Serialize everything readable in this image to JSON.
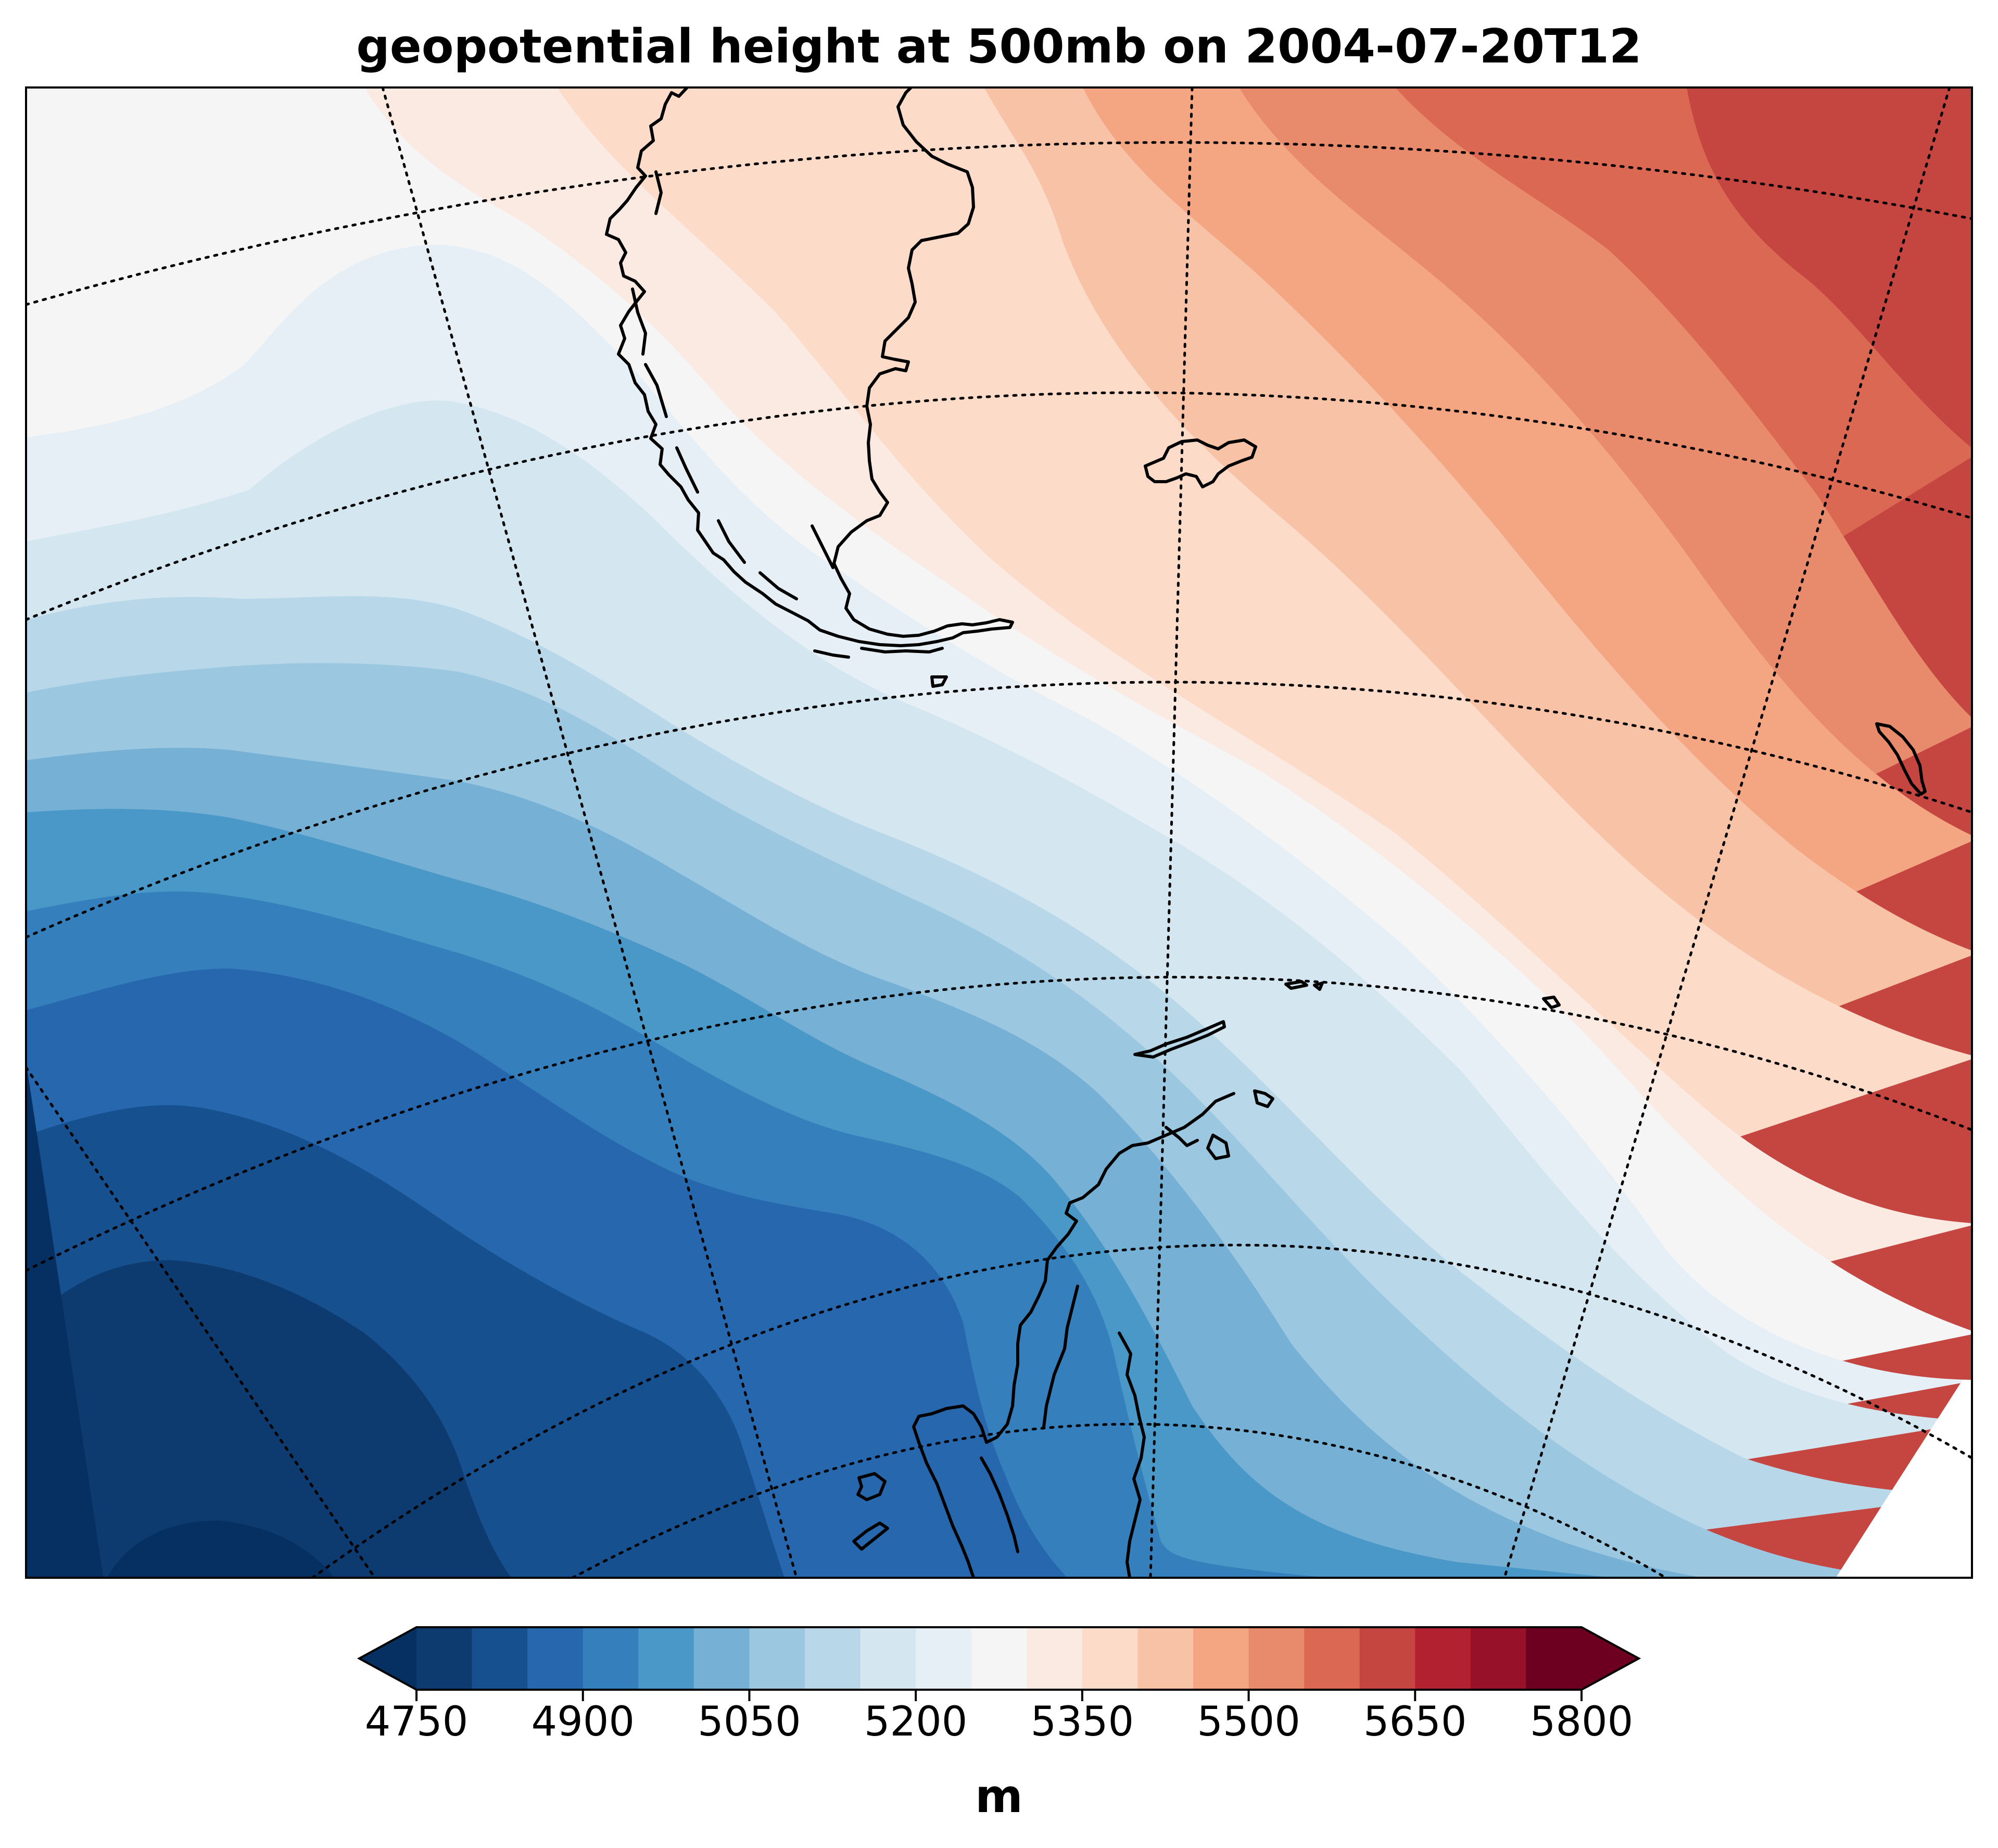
{
  "title": "geopotential height at 500mb on 2004-07-20T12",
  "colorbar": {
    "unit": "m",
    "ticks": [
      "4750",
      "4900",
      "5050",
      "5200",
      "5350",
      "5500",
      "5650",
      "5800"
    ],
    "min": 4750,
    "max": 5800,
    "step": 50,
    "extend": "both",
    "colormap": "RdBu_r",
    "colors": [
      "#053061",
      "#0d3b70",
      "#17508f",
      "#2667ae",
      "#3580bc",
      "#4a98c8",
      "#76b1d5",
      "#9cc7e0",
      "#b8d8e9",
      "#d4e6f0",
      "#e6eff6",
      "#f5f5f5",
      "#faeae2",
      "#fcdbc9",
      "#f8c2a6",
      "#f4a683",
      "#e88a6c",
      "#da6853",
      "#c54641",
      "#b2212f",
      "#971228",
      "#6d0021"
    ]
  },
  "map": {
    "field": "geopotential height",
    "level": "500mb",
    "valid_time": "2004-07-20T12",
    "region": "Drake Passage, southern South America and Antarctic Peninsula",
    "gradient": "height decreases from north-east (~5700 m) to south-west (~4750 m)",
    "graticule": "dotted",
    "coastlines": true
  }
}
